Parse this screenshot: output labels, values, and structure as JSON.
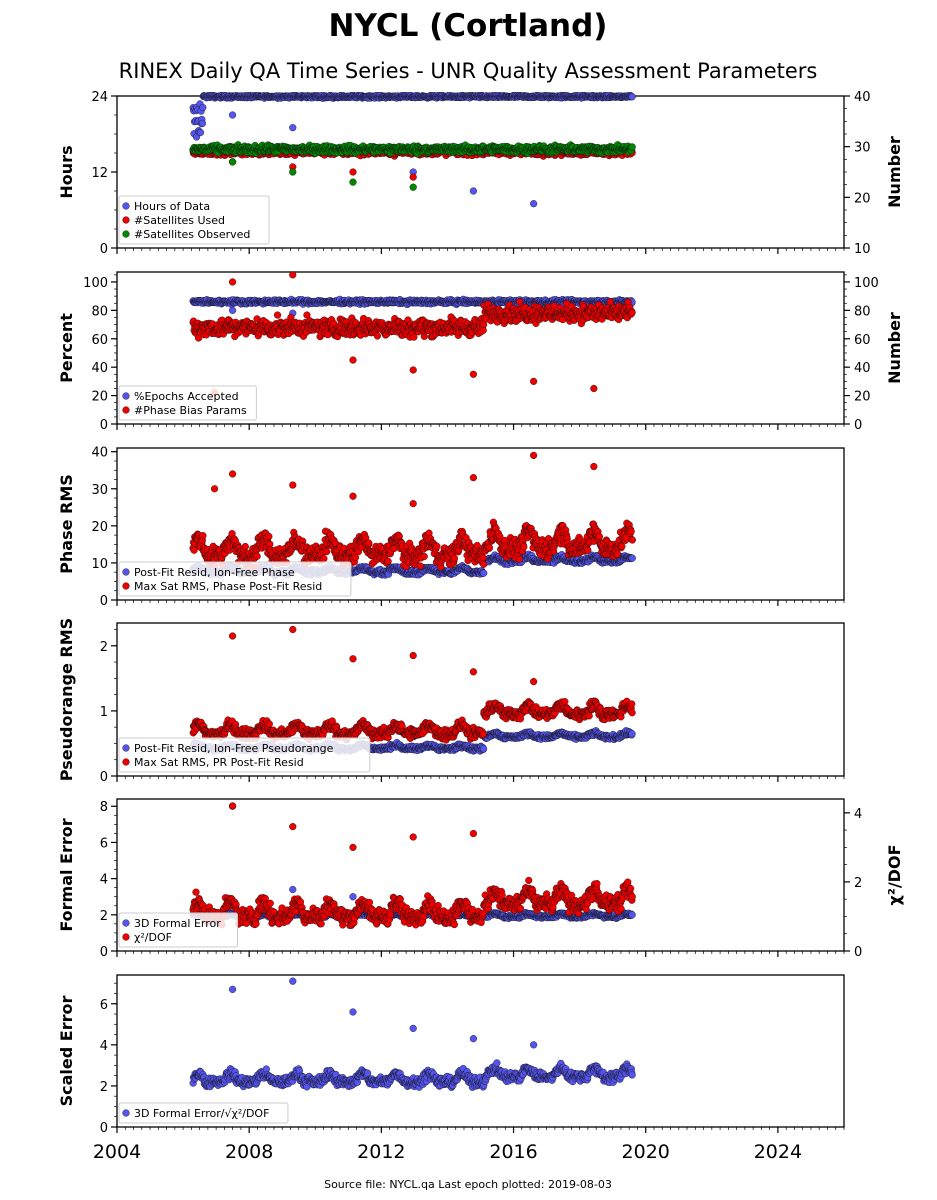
{
  "title": "NYCL (Cortland)",
  "subtitle": "RINEX Daily QA Time Series - UNR Quality Assessment Parameters",
  "footer": "Source file: NYCL.qa Last epoch plotted: 2019-08-03",
  "colors": {
    "blue": "#5555ee",
    "red": "#ee0000",
    "green": "#008800"
  },
  "chart_data": [
    {
      "type": "scatter",
      "ylabel": "Hours",
      "ylim": [
        0,
        24
      ],
      "yticks": [
        "0",
        "12",
        "24"
      ],
      "y2label": "Number",
      "y2lim": [
        10,
        40
      ],
      "y2ticks": [
        "10",
        "20",
        "30",
        "40"
      ],
      "xlim": [
        2004,
        2026
      ],
      "legend": {
        "placement": "lower-left",
        "entries": [
          "Hours of Data",
          "#Satellites Used",
          "#Satellites Observed"
        ]
      },
      "series": [
        {
          "name": "Hours of Data",
          "color": "#5555ee",
          "axis": "left",
          "base": 23.9,
          "band": 0.3,
          "outliers": [
            21,
            19,
            16,
            12,
            9,
            7
          ],
          "start_spike": [
            18,
            20,
            22
          ]
        },
        {
          "name": "#Satellites Used",
          "color": "#ee0000",
          "axis": "right",
          "base": 29,
          "band": 1.0,
          "outliers": [
            27,
            26,
            25,
            24
          ]
        },
        {
          "name": "#Satellites Observed",
          "color": "#008800",
          "axis": "right",
          "base": 29.5,
          "band": 1.0,
          "outliers": [
            27,
            25,
            23,
            22
          ]
        }
      ],
      "date_range": [
        2006.3,
        2019.6
      ]
    },
    {
      "type": "scatter",
      "ylabel": "Percent",
      "ylim": [
        0,
        107
      ],
      "yticks": [
        "0",
        "20",
        "40",
        "60",
        "80",
        "100"
      ],
      "y2label": "Number",
      "y2lim": [
        0,
        107
      ],
      "y2ticks": [
        "0",
        "20",
        "40",
        "60",
        "80",
        "100"
      ],
      "xlim": [
        2004,
        2026
      ],
      "legend": {
        "placement": "lower-left",
        "entries": [
          "%Epochs Accepted",
          "#Phase Bias Params"
        ]
      },
      "series": [
        {
          "name": "%Epochs Accepted",
          "color": "#5555ee",
          "axis": "left",
          "base": 86,
          "band": 2.0,
          "outliers": [
            80,
            78
          ]
        },
        {
          "name": "#Phase Bias Params",
          "color": "#ee0000",
          "axis": "right",
          "base": 68,
          "band": 9,
          "late_base": 78,
          "outliers": [
            100,
            105,
            45,
            38,
            35,
            30,
            25,
            22
          ]
        }
      ],
      "date_range": [
        2006.3,
        2019.6
      ]
    },
    {
      "type": "scatter",
      "ylabel": "Phase RMS",
      "ylim": [
        0,
        41
      ],
      "yticks": [
        "0",
        "10",
        "20",
        "30",
        "40"
      ],
      "xlim": [
        2004,
        2026
      ],
      "legend": {
        "placement": "lower-left",
        "entries": [
          "Post-Fit Resid, Ion-Free Phase",
          "Max Sat RMS, Phase Post-Fit Resid"
        ]
      },
      "series": [
        {
          "name": "Post-Fit Resid, Ion-Free Phase",
          "color": "#5555ee",
          "base": 7.5,
          "band": 1.0,
          "late_base": 10.5
        },
        {
          "name": "Max Sat RMS, Phase Post-Fit Resid",
          "color": "#ee0000",
          "base": 12,
          "band": 4,
          "late_base": 14,
          "outliers": [
            34,
            31,
            28,
            26,
            33,
            39,
            36,
            30
          ]
        }
      ],
      "date_range": [
        2006.3,
        2019.6
      ]
    },
    {
      "type": "scatter",
      "ylabel": "Pseudorange RMS",
      "ylim": [
        0,
        2.35
      ],
      "yticks": [
        "0",
        "1",
        "2"
      ],
      "xlim": [
        2004,
        2026
      ],
      "legend": {
        "placement": "lower-left",
        "entries": [
          "Post-Fit Resid, Ion-Free Pseudorange",
          "Max Sat RMS, PR Post-Fit Resid"
        ]
      },
      "series": [
        {
          "name": "Post-Fit Resid, Ion-Free Pseudorange",
          "color": "#5555ee",
          "base": 0.42,
          "band": 0.05,
          "late_base": 0.6
        },
        {
          "name": "Max Sat RMS, PR Post-Fit Resid",
          "color": "#ee0000",
          "base": 0.65,
          "band": 0.12,
          "late_base": 0.95,
          "outliers": [
            2.15,
            2.25,
            1.8,
            1.85,
            1.6,
            1.45
          ]
        }
      ],
      "date_range": [
        2006.3,
        2019.6
      ]
    },
    {
      "type": "scatter",
      "ylabel": "Formal Error",
      "ylim": [
        0,
        8.4
      ],
      "yticks": [
        "0",
        "2",
        "4",
        "6",
        "8"
      ],
      "y2label": "χ²/DOF",
      "y2lim": [
        0,
        4.4
      ],
      "y2ticks": [
        "0",
        "2",
        "4"
      ],
      "xlim": [
        2004,
        2026
      ],
      "legend": {
        "placement": "lower-left",
        "entries": [
          "3D Formal Error",
          "χ²/DOF"
        ]
      },
      "series": [
        {
          "name": "3D Formal Error",
          "color": "#5555ee",
          "axis": "left",
          "base": 1.9,
          "band": 0.15,
          "outliers": [
            8.0,
            3.4,
            3.0
          ]
        },
        {
          "name": "χ²/DOF",
          "color": "#ee0000",
          "axis": "right",
          "base": 1.0,
          "band": 0.35,
          "late_base": 1.35,
          "outliers": [
            4.2,
            3.6,
            3.0,
            3.3,
            3.4
          ]
        }
      ],
      "date_range": [
        2006.3,
        2019.6
      ]
    },
    {
      "type": "scatter",
      "ylabel": "Scaled Error",
      "ylim": [
        0,
        7.4
      ],
      "yticks": [
        "0",
        "2",
        "4",
        "6"
      ],
      "xlabel": "",
      "xlim": [
        2004,
        2026
      ],
      "xticks": [
        "2004",
        "2008",
        "2012",
        "2016",
        "2020",
        "2024"
      ],
      "legend": {
        "placement": "lower-left",
        "entries": [
          "3D Formal Error/√χ²/DOF"
        ]
      },
      "series": [
        {
          "name": "3D Formal Error/√χ²/DOF",
          "color": "#5555ee",
          "base": 2.2,
          "band": 0.35,
          "late_base": 2.45,
          "outliers": [
            6.7,
            7.1,
            5.6,
            4.8,
            4.3,
            4.0
          ]
        }
      ],
      "date_range": [
        2006.3,
        2019.6
      ]
    }
  ]
}
